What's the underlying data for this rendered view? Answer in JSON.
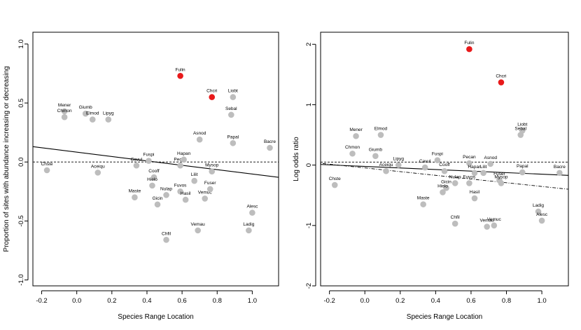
{
  "chart_data": [
    {
      "type": "scatter",
      "xlabel": "Species Range Location",
      "ylabel": "Proportion of sites with abundance increasing or decreasing",
      "xlim": [
        -0.25,
        1.15
      ],
      "ylim": [
        -1.05,
        1.1
      ],
      "xticks": [
        "-0.2",
        "0.0",
        "0.2",
        "0.4",
        "0.6",
        "0.8",
        "1.0"
      ],
      "yticks": [
        "-1.0",
        "-0.5",
        "0.0",
        "0.5",
        "1.0"
      ],
      "xtick_values": [
        -0.2,
        0.0,
        0.2,
        0.4,
        0.6,
        0.8,
        1.0
      ],
      "ytick_values": [
        -1.0,
        -0.5,
        0.0,
        0.5,
        1.0
      ],
      "colors": {
        "highlight": "#e8191a",
        "normal": "#bdbdbd"
      },
      "points": [
        {
          "label": "Chste",
          "x": -0.17,
          "y": -0.07,
          "highlight": false
        },
        {
          "label": "Mener",
          "x": -0.07,
          "y": 0.43,
          "highlight": false
        },
        {
          "label": "Chmon",
          "x": -0.07,
          "y": 0.38,
          "highlight": false
        },
        {
          "label": "Giumb",
          "x": 0.05,
          "y": 0.41,
          "highlight": false
        },
        {
          "label": "Elmod",
          "x": 0.09,
          "y": 0.36,
          "highlight": false
        },
        {
          "label": "Lipyg",
          "x": 0.18,
          "y": 0.36,
          "highlight": false
        },
        {
          "label": "Aceiqu",
          "x": 0.12,
          "y": -0.09,
          "highlight": false
        },
        {
          "label": "Fuspi",
          "x": 0.41,
          "y": 0.01,
          "highlight": false
        },
        {
          "label": "Cavul",
          "x": 0.34,
          "y": -0.03,
          "highlight": false
        },
        {
          "label": "Cooff",
          "x": 0.44,
          "y": -0.13,
          "highlight": false
        },
        {
          "label": "Hielo",
          "x": 0.43,
          "y": -0.2,
          "highlight": false
        },
        {
          "label": "Maste",
          "x": 0.33,
          "y": -0.3,
          "highlight": false
        },
        {
          "label": "Gicin",
          "x": 0.46,
          "y": -0.36,
          "highlight": false
        },
        {
          "label": "Nulap",
          "x": 0.51,
          "y": -0.28,
          "highlight": false
        },
        {
          "label": "Chfil",
          "x": 0.51,
          "y": -0.66,
          "highlight": false
        },
        {
          "label": "Fuvos",
          "x": 0.59,
          "y": -0.25,
          "highlight": false
        },
        {
          "label": "Hasil",
          "x": 0.62,
          "y": -0.32,
          "highlight": false
        },
        {
          "label": "Pecan",
          "x": 0.59,
          "y": -0.03,
          "highlight": false
        },
        {
          "label": "Hapan",
          "x": 0.61,
          "y": 0.02,
          "highlight": false
        },
        {
          "label": "Lilit",
          "x": 0.67,
          "y": -0.16,
          "highlight": false
        },
        {
          "label": "Asnod",
          "x": 0.7,
          "y": 0.19,
          "highlight": false
        },
        {
          "label": "Vemau",
          "x": 0.69,
          "y": -0.58,
          "highlight": false
        },
        {
          "label": "Vemuc",
          "x": 0.73,
          "y": -0.31,
          "highlight": false
        },
        {
          "label": "Fuser",
          "x": 0.76,
          "y": -0.23,
          "highlight": false
        },
        {
          "label": "Mysop",
          "x": 0.77,
          "y": -0.08,
          "highlight": false
        },
        {
          "label": "Fulin",
          "x": 0.59,
          "y": 0.73,
          "highlight": true
        },
        {
          "label": "Chcri",
          "x": 0.77,
          "y": 0.55,
          "highlight": true
        },
        {
          "label": "Liobt",
          "x": 0.89,
          "y": 0.55,
          "highlight": false
        },
        {
          "label": "Sebal",
          "x": 0.88,
          "y": 0.4,
          "highlight": false
        },
        {
          "label": "Papal",
          "x": 0.89,
          "y": 0.16,
          "highlight": false
        },
        {
          "label": "Bacre",
          "x": 1.1,
          "y": 0.12,
          "highlight": false
        },
        {
          "label": "Alesc",
          "x": 1.0,
          "y": -0.43,
          "highlight": false
        },
        {
          "label": "Ladig",
          "x": 0.98,
          "y": -0.58,
          "highlight": false
        }
      ],
      "lines": [
        {
          "style": "solid",
          "x": [
            -0.25,
            1.15
          ],
          "y": [
            0.13,
            -0.13
          ]
        },
        {
          "style": "dashed",
          "x": [
            -0.25,
            1.15
          ],
          "y": [
            0.0,
            0.0
          ]
        }
      ]
    },
    {
      "type": "scatter",
      "xlabel": "Species Range Location",
      "ylabel": "Log odds ratio",
      "xlim": [
        -0.25,
        1.15
      ],
      "ylim": [
        -2.0,
        2.2
      ],
      "xticks": [
        "-0.2",
        "0.0",
        "0.2",
        "0.4",
        "0.6",
        "0.8",
        "1.0"
      ],
      "yticks": [
        "-2",
        "-1",
        "0",
        "1",
        "2"
      ],
      "xtick_values": [
        -0.2,
        0.0,
        0.2,
        0.4,
        0.6,
        0.8,
        1.0
      ],
      "ytick_values": [
        -2,
        -1,
        0,
        1,
        2
      ],
      "colors": {
        "highlight": "#e8191a",
        "normal": "#bdbdbd"
      },
      "points": [
        {
          "label": "Chste",
          "x": -0.17,
          "y": -0.33,
          "highlight": false
        },
        {
          "label": "Mener",
          "x": -0.05,
          "y": 0.48,
          "highlight": false
        },
        {
          "label": "Chmon",
          "x": -0.07,
          "y": 0.19,
          "highlight": false
        },
        {
          "label": "Elmod",
          "x": 0.09,
          "y": 0.5,
          "highlight": false
        },
        {
          "label": "Giumb",
          "x": 0.06,
          "y": 0.15,
          "highlight": false
        },
        {
          "label": "Lipyg",
          "x": 0.19,
          "y": 0.0,
          "highlight": false
        },
        {
          "label": "Aceiqu",
          "x": 0.12,
          "y": -0.1,
          "highlight": false
        },
        {
          "label": "Fuspi",
          "x": 0.41,
          "y": 0.08,
          "highlight": false
        },
        {
          "label": "Cavul",
          "x": 0.34,
          "y": -0.04,
          "highlight": false
        },
        {
          "label": "Cooff",
          "x": 0.45,
          "y": -0.1,
          "highlight": false
        },
        {
          "label": "Pecan",
          "x": 0.59,
          "y": 0.03,
          "highlight": false
        },
        {
          "label": "Asnod",
          "x": 0.71,
          "y": 0.02,
          "highlight": false
        },
        {
          "label": "Hapan",
          "x": 0.62,
          "y": -0.13,
          "highlight": false
        },
        {
          "label": "Lilit",
          "x": 0.67,
          "y": -0.13,
          "highlight": false
        },
        {
          "label": "Nulap",
          "x": 0.51,
          "y": -0.3,
          "highlight": false
        },
        {
          "label": "Fuvos",
          "x": 0.59,
          "y": -0.3,
          "highlight": false
        },
        {
          "label": "Gicin",
          "x": 0.46,
          "y": -0.38,
          "highlight": false
        },
        {
          "label": "Hielo",
          "x": 0.44,
          "y": -0.45,
          "highlight": false
        },
        {
          "label": "Hasil",
          "x": 0.62,
          "y": -0.55,
          "highlight": false
        },
        {
          "label": "Maste",
          "x": 0.33,
          "y": -0.65,
          "highlight": false
        },
        {
          "label": "Fuser",
          "x": 0.76,
          "y": -0.25,
          "highlight": false
        },
        {
          "label": "Mysop",
          "x": 0.77,
          "y": -0.3,
          "highlight": false
        },
        {
          "label": "Papal",
          "x": 0.89,
          "y": -0.12,
          "highlight": false
        },
        {
          "label": "Bacre",
          "x": 1.1,
          "y": -0.13,
          "highlight": false
        },
        {
          "label": "Liobt",
          "x": 0.89,
          "y": 0.57,
          "highlight": false
        },
        {
          "label": "Sebal",
          "x": 0.88,
          "y": 0.5,
          "highlight": false
        },
        {
          "label": "Fulin",
          "x": 0.59,
          "y": 1.92,
          "highlight": true
        },
        {
          "label": "Chcri",
          "x": 0.77,
          "y": 1.37,
          "highlight": true
        },
        {
          "label": "Chfil",
          "x": 0.51,
          "y": -0.97,
          "highlight": false
        },
        {
          "label": "Vemau",
          "x": 0.69,
          "y": -1.02,
          "highlight": false
        },
        {
          "label": "Vemuc",
          "x": 0.73,
          "y": -1.0,
          "highlight": false
        },
        {
          "label": "Ladig",
          "x": 0.98,
          "y": -0.77,
          "highlight": false
        },
        {
          "label": "Alesc",
          "x": 1.0,
          "y": -0.92,
          "highlight": false
        }
      ],
      "lines": [
        {
          "style": "solid",
          "x": [
            -0.25,
            1.15
          ],
          "y": [
            0.01,
            -0.17
          ]
        },
        {
          "style": "dashed",
          "x": [
            -0.25,
            1.15
          ],
          "y": [
            0.05,
            0.05
          ]
        },
        {
          "style": "dotdash",
          "x": [
            -0.25,
            1.15
          ],
          "y": [
            0.03,
            -0.4
          ]
        }
      ]
    }
  ]
}
